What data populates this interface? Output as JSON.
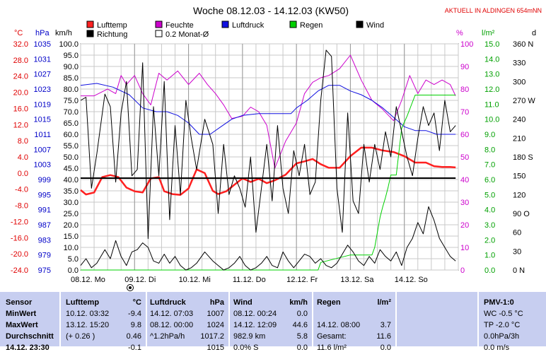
{
  "chart_data": {
    "type": "line",
    "title": "Woche 08.12.03 - 14.12.03 (KW50)",
    "subtitle": "AKTUELL IN ALDINGEN 654mNN",
    "x_categories": [
      "08.12. Mo",
      "09.12. Di",
      "10.12. Mi",
      "11.12. Do",
      "12.12. Fr",
      "13.12. Sa",
      "14.12. So"
    ],
    "legend": [
      {
        "label": "Lufttemp",
        "color": "#ff2020"
      },
      {
        "label": "Feuchte",
        "color": "#cc00cc"
      },
      {
        "label": "Luftdruck",
        "color": "#1010e0"
      },
      {
        "label": "Regen",
        "color": "#00d000"
      },
      {
        "label": "Wind",
        "color": "#000000"
      },
      {
        "label": "Richtung",
        "color": "#000000"
      },
      {
        "label": "0.2 Monat-Ø",
        "color": "#000000"
      }
    ],
    "axes": {
      "temp": {
        "unit": "°C",
        "ticks": [
          "32.0",
          "28.0",
          "24.0",
          "20.0",
          "16.0",
          "12.0",
          "8.0",
          "4.0",
          "0.0",
          "-4.0",
          "-8.0",
          "-12.0",
          "-16.0",
          "-20.0",
          "-24.0"
        ]
      },
      "pressure": {
        "unit": "hPa",
        "ticks": [
          "1035",
          "1031",
          "1027",
          "1023",
          "1019",
          "1015",
          "1011",
          "1007",
          "1003",
          "999",
          "995",
          "991",
          "987",
          "983",
          "979",
          "975"
        ]
      },
      "wind": {
        "unit": "km/h",
        "ticks": [
          "100.0",
          "95.0",
          "90.0",
          "85.0",
          "80.0",
          "75.0",
          "70.0",
          "65.0",
          "60.0",
          "55.0",
          "50.0",
          "45.0",
          "40.0",
          "35.0",
          "30.0",
          "25.0",
          "20.0",
          "15.0",
          "10.0",
          "5.0",
          "0.0"
        ]
      },
      "humidity": {
        "unit": "%",
        "ticks": [
          "100",
          "90",
          "80",
          "70",
          "60",
          "50",
          "40",
          "30",
          "20",
          "10",
          "0"
        ]
      },
      "rain": {
        "unit": "l/m²",
        "ticks": [
          "15.0",
          "14.0",
          "13.0",
          "12.0",
          "11.0",
          "10.0",
          "9.0",
          "8.0",
          "7.0",
          "6.0",
          "5.0",
          "4.0",
          "3.0",
          "2.0",
          "1.0",
          "0.0"
        ]
      },
      "direction": {
        "unit": "d",
        "ticks": [
          "360 N",
          "330",
          "300",
          "270 W",
          "240",
          "210",
          "180 S",
          "150",
          "120",
          "90 O",
          "60",
          "30",
          "0 N"
        ]
      }
    },
    "series": [
      {
        "name": "Lufttemp",
        "unit": "°C",
        "x": [
          0,
          0.1,
          0.25,
          0.4,
          0.55,
          0.7,
          0.85,
          1.0,
          1.15,
          1.3,
          1.45,
          1.55,
          1.7,
          1.85,
          2.0,
          2.15,
          2.3,
          2.45,
          2.55,
          2.7,
          2.85,
          3.0,
          3.15,
          3.3,
          3.45,
          3.6,
          3.8,
          4.0,
          4.15,
          4.3,
          4.45,
          4.6,
          4.8,
          5.0,
          5.2,
          5.4,
          5.6,
          5.8,
          6.0,
          6.2,
          6.4,
          6.55,
          6.7,
          6.85,
          6.95
        ],
        "y": [
          -4.2,
          -5.3,
          -4.8,
          -1.0,
          -0.5,
          -1.0,
          -3.6,
          -4.5,
          -4.8,
          -1.3,
          -1.0,
          -4.5,
          -5.2,
          -5.4,
          -3.8,
          0.9,
          0.0,
          -4.4,
          -5.2,
          -4.5,
          -2.9,
          -1.3,
          -2.2,
          -1.4,
          -2.5,
          -1.8,
          -0.4,
          2.4,
          2.9,
          3.5,
          2.2,
          1.3,
          1.3,
          4.2,
          6.3,
          6.3,
          5.6,
          5.2,
          4.2,
          2.6,
          2.6,
          1.7,
          1.5,
          1.5,
          1.4
        ]
      },
      {
        "name": "Feuchte",
        "unit": "%",
        "x": [
          0,
          0.25,
          0.5,
          0.65,
          0.75,
          0.85,
          1.0,
          1.15,
          1.3,
          1.45,
          1.6,
          1.8,
          2.0,
          2.2,
          2.35,
          2.5,
          2.65,
          2.8,
          3.0,
          3.15,
          3.3,
          3.45,
          3.6,
          3.8,
          4.0,
          4.15,
          4.3,
          4.45,
          4.6,
          4.8,
          5.0,
          5.2,
          5.4,
          5.6,
          5.8,
          5.95,
          6.1,
          6.25,
          6.4,
          6.55,
          6.7,
          6.85,
          6.95
        ],
        "y": [
          77,
          77,
          80,
          78,
          86,
          82,
          86,
          78,
          73,
          87,
          84,
          88,
          82,
          87,
          82,
          78,
          73,
          67,
          68,
          72,
          70,
          64,
          45,
          57,
          65,
          78,
          83,
          85,
          86,
          89,
          95,
          84,
          75,
          71,
          66,
          75,
          86,
          78,
          84,
          82,
          84,
          82,
          77
        ]
      },
      {
        "name": "Luftdruck",
        "unit": "hPa",
        "x": [
          0,
          0.3,
          0.6,
          0.9,
          1.15,
          1.4,
          1.6,
          1.8,
          2.0,
          2.2,
          2.4,
          2.6,
          2.8,
          3.0,
          3.3,
          3.6,
          3.9,
          4.0,
          4.2,
          4.4,
          4.6,
          4.8,
          5.0,
          5.2,
          5.4,
          5.6,
          5.8,
          6.0,
          6.2,
          6.4,
          6.6,
          6.8,
          6.95
        ],
        "y": [
          1024,
          1024.5,
          1023.5,
          1021.5,
          1018,
          1017,
          1017,
          1016,
          1014,
          1011,
          1011,
          1013,
          1015,
          1016,
          1016.5,
          1016.5,
          1016.5,
          1018,
          1020,
          1022.5,
          1024,
          1024,
          1022.5,
          1021.5,
          1020,
          1018,
          1015.5,
          1013,
          1012,
          1012,
          1011,
          1011,
          1011
        ]
      },
      {
        "name": "Regen",
        "unit": "l/m²",
        "x": [
          0,
          4.4,
          4.45,
          5.0,
          5.3,
          5.4,
          5.45,
          5.55,
          5.6,
          5.65,
          5.7,
          5.75,
          5.85,
          5.95,
          6.05,
          6.2,
          6.3,
          6.4,
          6.5,
          6.6,
          6.7,
          6.8,
          6.95
        ],
        "y": [
          0,
          0,
          0.5,
          1,
          1,
          1,
          1.5,
          3.5,
          4.2,
          4.8,
          5.5,
          6.3,
          6.3,
          9.4,
          10.2,
          11.6,
          11.6,
          11.6,
          11.6,
          11.6,
          11.6,
          11.6,
          11.6
        ]
      },
      {
        "name": "Wind",
        "unit": "km/h",
        "x": [
          0,
          0.1,
          0.2,
          0.3,
          0.45,
          0.55,
          0.65,
          0.75,
          0.85,
          0.95,
          1.05,
          1.15,
          1.25,
          1.35,
          1.45,
          1.55,
          1.65,
          1.75,
          1.85,
          1.95,
          2.05,
          2.15,
          2.3,
          2.45,
          2.55,
          2.65,
          2.75,
          2.85,
          2.95,
          3.05,
          3.15,
          3.25,
          3.35,
          3.45,
          3.55,
          3.65,
          3.75,
          3.85,
          3.95,
          4.05,
          4.15,
          4.25,
          4.35,
          4.45,
          4.55,
          4.65,
          4.75,
          4.85,
          4.95,
          5.05,
          5.15,
          5.25,
          5.35,
          5.45,
          5.55,
          5.65,
          5.75,
          5.85,
          5.95,
          6.05,
          6.15,
          6.25,
          6.35,
          6.45,
          6.55,
          6.65,
          6.75,
          6.85,
          6.95
        ],
        "y": [
          2,
          5,
          1,
          3,
          9,
          5,
          13,
          6,
          2,
          8,
          9,
          12,
          10,
          4,
          3,
          7,
          3,
          6,
          2,
          0,
          1,
          3,
          8,
          4,
          2,
          0,
          1,
          3,
          6,
          2,
          0,
          1,
          3,
          6,
          2,
          1,
          8,
          4,
          1,
          4,
          7,
          6,
          3,
          5,
          2,
          1,
          3,
          7,
          11,
          8,
          4,
          2,
          6,
          3,
          9,
          6,
          4,
          8,
          2,
          10,
          14,
          21,
          16,
          28,
          22,
          14,
          10,
          6,
          4
        ]
      },
      {
        "name": "Richtung",
        "unit": "°",
        "x": [
          0,
          0.1,
          0.2,
          0.3,
          0.45,
          0.55,
          0.65,
          0.75,
          0.85,
          0.95,
          1.05,
          1.15,
          1.25,
          1.35,
          1.45,
          1.55,
          1.65,
          1.75,
          1.85,
          1.95,
          2.05,
          2.15,
          2.3,
          2.45,
          2.55,
          2.65,
          2.75,
          2.85,
          2.95,
          3.05,
          3.15,
          3.25,
          3.35,
          3.45,
          3.55,
          3.65,
          3.75,
          3.85,
          3.95,
          4.05,
          4.15,
          4.25,
          4.35,
          4.45,
          4.55,
          4.65,
          4.75,
          4.85,
          4.95,
          5.05,
          5.15,
          5.25,
          5.35,
          5.45,
          5.55,
          5.65,
          5.75,
          5.85,
          5.95,
          6.05,
          6.15,
          6.25,
          6.35,
          6.45,
          6.55,
          6.65,
          6.75,
          6.85,
          6.95
        ],
        "y": [
          270,
          275,
          130,
          185,
          280,
          260,
          140,
          250,
          300,
          150,
          160,
          330,
          50,
          260,
          150,
          300,
          80,
          230,
          120,
          270,
          210,
          160,
          240,
          200,
          90,
          200,
          120,
          150,
          130,
          100,
          180,
          60,
          130,
          200,
          110,
          230,
          130,
          90,
          190,
          150,
          200,
          120,
          140,
          270,
          350,
          340,
          130,
          60,
          250,
          110,
          90,
          200,
          140,
          200,
          160,
          220,
          180,
          260,
          220,
          180,
          150,
          210,
          260,
          230,
          250,
          190,
          270,
          220,
          230
        ]
      },
      {
        "name": "0.2 Monat-Ø",
        "unit": "°C",
        "x": [
          0,
          6.95
        ],
        "y": [
          0,
          0
        ]
      }
    ],
    "grid": true
  },
  "table": {
    "columns": [
      {
        "header": "Sensor",
        "unit": ""
      },
      {
        "header": "Lufttemp",
        "unit": "°C"
      },
      {
        "header": "Luftdruck",
        "unit": "hPa"
      },
      {
        "header": "Wind",
        "unit": "km/h"
      },
      {
        "header": "Regen",
        "unit": "l/m²"
      },
      {
        "header": "",
        "unit": ""
      },
      {
        "header": "PMV-1:0",
        "unit": ""
      }
    ],
    "rows": [
      {
        "label": "MinWert",
        "temp_time": "10.12.  03:32",
        "temp_val": "-9.4",
        "press_time": "14.12.  07:03",
        "press_val": "1007",
        "wind_time": "08.12.  00:24",
        "wind_val": "0.0",
        "rain_time": "",
        "rain_val": "",
        "pmv": "WC -0.5 °C"
      },
      {
        "label": "MaxWert",
        "temp_time": "13.12.  15:20",
        "temp_val": "9.8",
        "press_time": "08.12.  00:00",
        "press_val": "1024",
        "wind_time": "14.12.  12:09",
        "wind_val": "44.6",
        "rain_time": "14.12.  08:00",
        "rain_val": "3.7",
        "pmv": "TP -2.0 °C"
      },
      {
        "label": "Durchschnitt",
        "temp_time": "(+ 0.26 )",
        "temp_val": "0.46",
        "press_time": "^1.2hPa/h",
        "press_val": "1017.2",
        "wind_time": "982.9 km",
        "wind_val": "5.8",
        "rain_time": "Gesamt:",
        "rain_val": "11.6",
        "pmv": "0.0hPa/3h"
      },
      {
        "label": "14.12. 23:30",
        "temp_time": "",
        "temp_val": "-0.1",
        "press_time": "",
        "press_val": "1015",
        "wind_time": "0.0% S",
        "wind_val": "0.0",
        "rain_time": "11.6 l/m²",
        "rain_val": "0.0",
        "pmv": "0.0 m/s"
      }
    ]
  }
}
